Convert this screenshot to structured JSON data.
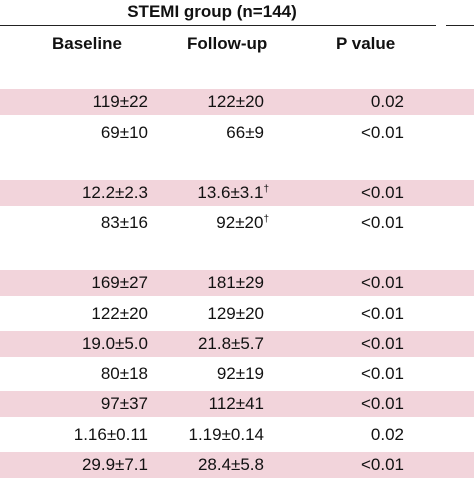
{
  "table": {
    "group_title": "STEMI group (n=144)",
    "headers": {
      "baseline": "Baseline",
      "followup": "Follow-up",
      "pvalue": "P value"
    },
    "rows": [
      {
        "baseline": "119±22",
        "followup": "122±20",
        "followup_mark": "",
        "pvalue": "0.02",
        "shaded": true
      },
      {
        "baseline": "69±10",
        "followup": "66±9",
        "followup_mark": "",
        "pvalue": "<0.01",
        "shaded": false
      },
      {
        "baseline": "12.2±2.3",
        "followup": "13.6±3.1",
        "followup_mark": "†",
        "pvalue": "<0.01",
        "shaded": true
      },
      {
        "baseline": "83±16",
        "followup": "92±20",
        "followup_mark": "†",
        "pvalue": "<0.01",
        "shaded": false
      },
      {
        "baseline": "169±27",
        "followup": "181±29",
        "followup_mark": "",
        "pvalue": "<0.01",
        "shaded": true
      },
      {
        "baseline": "122±20",
        "followup": "129±20",
        "followup_mark": "",
        "pvalue": "<0.01",
        "shaded": false
      },
      {
        "baseline": "19.0±5.0",
        "followup": "21.8±5.7",
        "followup_mark": "",
        "pvalue": "<0.01",
        "shaded": true
      },
      {
        "baseline": "80±18",
        "followup": "92±19",
        "followup_mark": "",
        "pvalue": "<0.01",
        "shaded": false
      },
      {
        "baseline": "97±37",
        "followup": "112±41",
        "followup_mark": "",
        "pvalue": "<0.01",
        "shaded": true
      },
      {
        "baseline": "1.16±0.11",
        "followup": "1.19±0.14",
        "followup_mark": "",
        "pvalue": "0.02",
        "shaded": false
      },
      {
        "baseline": "29.9±7.1",
        "followup": "28.4±5.8",
        "followup_mark": "",
        "pvalue": "<0.01",
        "shaded": true
      }
    ]
  }
}
